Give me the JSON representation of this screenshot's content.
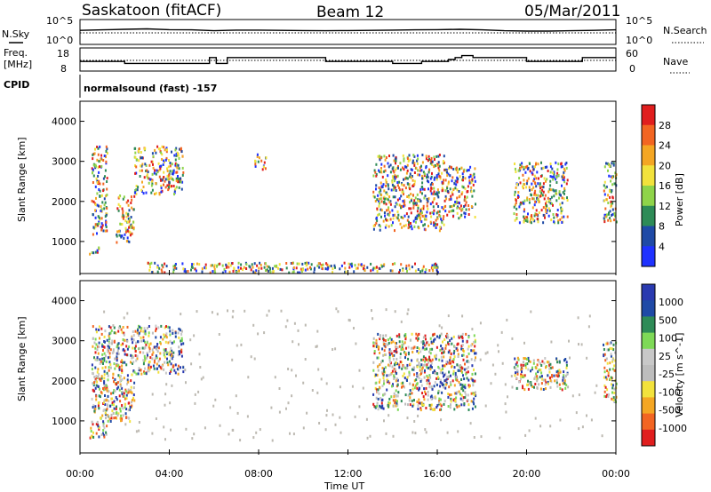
{
  "header": {
    "station": "Saskatoon (fitACF)",
    "beam": "Beam 12",
    "date": "05/Mar/2011"
  },
  "noise_panel": {
    "left_label": "N.Sky",
    "left_ticks": [
      "10^5",
      "10^0"
    ],
    "right_label": "N.Search",
    "right_ticks": [
      "10^5",
      "10^0"
    ]
  },
  "freq_panel": {
    "left_label_line1": "Freq.",
    "left_label_line2": "[MHz]",
    "left_ticks": [
      "18",
      "8"
    ],
    "right_label": "Nave",
    "right_ticks": [
      "60",
      "0"
    ]
  },
  "cpid_panel": {
    "label": "CPID",
    "mode_text": "normalsound (fast) -157"
  },
  "x_axis": {
    "ticks": [
      "00:00",
      "04:00",
      "08:00",
      "12:00",
      "16:00",
      "20:00",
      "00:00"
    ],
    "label": "Time UT"
  },
  "colors": {
    "power_scale": [
      "#1f32ff",
      "#1f4aa6",
      "#2e8b57",
      "#8fd44a",
      "#f2e23c",
      "#f4a623",
      "#f26522",
      "#e01e1e"
    ],
    "velocity_scale": [
      "#e01e1e",
      "#f26522",
      "#f4a623",
      "#f2e23c",
      "#bdbdbd",
      "#c8c8c8",
      "#7ed957",
      "#2e8b57",
      "#1f4aa6",
      "#2a3ab0"
    ],
    "ground_scatter": "#bdbab2"
  },
  "chart_data": [
    {
      "type": "line",
      "title": "",
      "xlabel": "",
      "ylabel": "N.Sky",
      "yscale": "log",
      "ylim": [
        1,
        100000
      ],
      "x": [
        0,
        1,
        2,
        3,
        4,
        5,
        6,
        7,
        8,
        9,
        10,
        11,
        12,
        13,
        14,
        15,
        16,
        17,
        18,
        19,
        20,
        21,
        22,
        23,
        24
      ],
      "series": [
        {
          "values": [
            700,
            900,
            1200,
            1500,
            1000,
            900,
            600,
            800,
            800,
            700,
            650,
            600,
            650,
            700,
            800,
            900,
            1000,
            1200,
            900,
            600,
            500,
            500,
            600,
            700,
            900
          ]
        }
      ],
      "annotation": "dotted N.Search trace"
    },
    {
      "type": "line",
      "title": "",
      "ylabel": "Freq. [MHz]",
      "ylim": [
        8,
        18
      ],
      "y2label": "Nave",
      "y2lim": [
        0,
        60
      ],
      "x": [
        0,
        2,
        2,
        5.8,
        5.8,
        6.1,
        6.1,
        6.6,
        6.6,
        11,
        11,
        12,
        12,
        14,
        14,
        15.3,
        15.3,
        16.5,
        16.5,
        16.8,
        16.8,
        17.1,
        17.1,
        17.6,
        17.6,
        20,
        20,
        22.5,
        22.5,
        24
      ],
      "series": [
        {
          "name": "Freq.",
          "values": [
            12,
            12,
            11,
            11,
            14,
            14,
            11,
            11,
            14,
            14,
            12,
            12,
            12,
            12,
            11,
            11,
            12,
            12,
            13,
            13,
            14,
            14,
            15,
            15,
            14,
            14,
            12,
            12,
            14,
            14
          ]
        }
      ]
    },
    {
      "type": "heatmap",
      "title": "",
      "xlabel": "Time UT",
      "ylabel": "Slant Range [km]",
      "xlim": [
        0,
        24
      ],
      "ylim": [
        200,
        4500
      ],
      "yticks": [
        1000,
        2000,
        3000,
        4000
      ],
      "colorbar": {
        "label": "Power [dB]",
        "ticks": [
          "28",
          "24",
          "20",
          "16",
          "12",
          "8",
          "4"
        ]
      },
      "echo_regions": [
        {
          "x": [
            0.4,
            0.9
          ],
          "y": [
            700,
            900
          ],
          "level": 20
        },
        {
          "x": [
            0.5,
            1.2
          ],
          "y": [
            1200,
            3400
          ],
          "level": 14
        },
        {
          "x": [
            1.6,
            2.4
          ],
          "y": [
            1000,
            2200
          ],
          "level": 20
        },
        {
          "x": [
            2.4,
            4.6
          ],
          "y": [
            2200,
            3400
          ],
          "level": 12
        },
        {
          "x": [
            7.8,
            8.3
          ],
          "y": [
            2800,
            3200
          ],
          "level": 8
        },
        {
          "x": [
            13.1,
            16.3
          ],
          "y": [
            1300,
            3200
          ],
          "level": 14
        },
        {
          "x": [
            16.3,
            17.7
          ],
          "y": [
            1600,
            2900
          ],
          "level": 18
        },
        {
          "x": [
            19.4,
            21.8
          ],
          "y": [
            1500,
            3000
          ],
          "level": 14
        },
        {
          "x": [
            23.4,
            24
          ],
          "y": [
            1500,
            3000
          ],
          "level": 14
        },
        {
          "x": [
            3,
            16
          ],
          "y": [
            250,
            500
          ],
          "level": 8
        }
      ]
    },
    {
      "type": "heatmap",
      "title": "",
      "xlabel": "Time UT",
      "ylabel": "Slant Range [km]",
      "xlim": [
        0,
        24
      ],
      "ylim": [
        200,
        4500
      ],
      "yticks": [
        1000,
        2000,
        3000,
        4000
      ],
      "colorbar": {
        "label": "Velocity [m s^-1]",
        "ticks": [
          "1000",
          "500",
          "100",
          "25",
          "-25",
          "-100",
          "-500",
          "-1000"
        ]
      },
      "echo_regions": [
        {
          "x": [
            0.4,
            1.2
          ],
          "y": [
            600,
            1000
          ],
          "level": 100
        },
        {
          "x": [
            0.5,
            2.4
          ],
          "y": [
            1000,
            3400
          ],
          "level": 0
        },
        {
          "x": [
            2.4,
            4.6
          ],
          "y": [
            2200,
            3400
          ],
          "level": 0
        },
        {
          "x": [
            13.1,
            17.7
          ],
          "y": [
            1300,
            3200
          ],
          "level": 0
        },
        {
          "x": [
            19.4,
            21.8
          ],
          "y": [
            1800,
            2600
          ],
          "level": 100
        },
        {
          "x": [
            23.4,
            24
          ],
          "y": [
            1500,
            3000
          ],
          "level": 0
        }
      ]
    }
  ]
}
